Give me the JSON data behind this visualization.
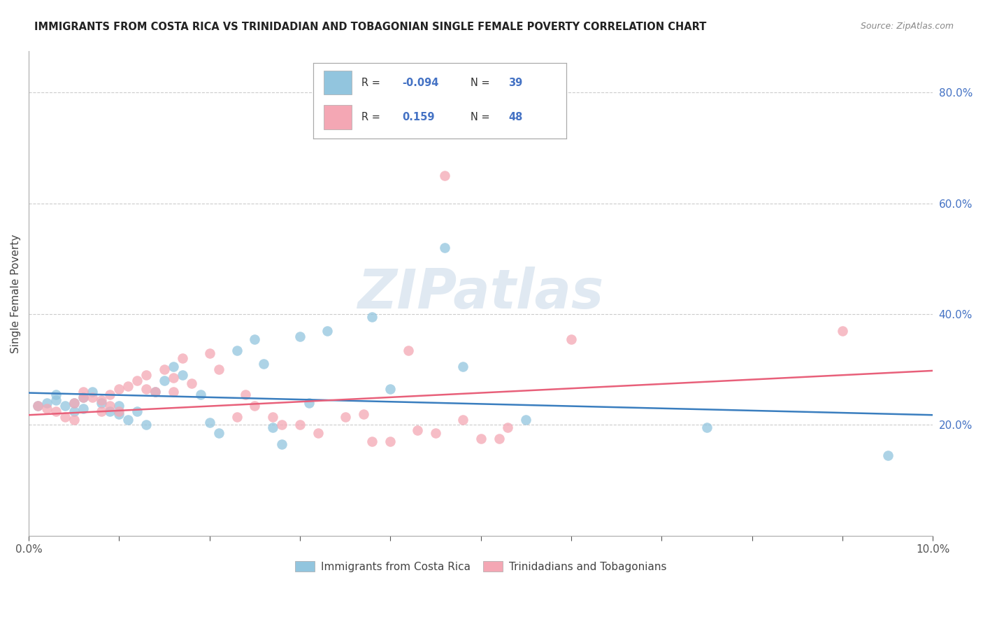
{
  "title": "IMMIGRANTS FROM COSTA RICA VS TRINIDADIAN AND TOBAGONIAN SINGLE FEMALE POVERTY CORRELATION CHART",
  "source": "Source: ZipAtlas.com",
  "ylabel": "Single Female Poverty",
  "legend_label1": "Immigrants from Costa Rica",
  "legend_label2": "Trinidadians and Tobagonians",
  "watermark": "ZIPatlas",
  "color_blue": "#92c5de",
  "color_pink": "#f4a7b4",
  "color_blue_line": "#3a7ebf",
  "color_pink_line": "#e8607a",
  "right_ytick_labels": [
    "20.0%",
    "40.0%",
    "60.0%",
    "80.0%"
  ],
  "right_ytick_values": [
    0.2,
    0.4,
    0.6,
    0.8
  ],
  "blue_scatter_x": [
    0.001,
    0.002,
    0.003,
    0.003,
    0.004,
    0.005,
    0.005,
    0.006,
    0.006,
    0.007,
    0.008,
    0.009,
    0.01,
    0.01,
    0.011,
    0.012,
    0.013,
    0.014,
    0.015,
    0.016,
    0.017,
    0.019,
    0.02,
    0.021,
    0.023,
    0.025,
    0.026,
    0.027,
    0.028,
    0.03,
    0.031,
    0.033,
    0.038,
    0.04,
    0.046,
    0.048,
    0.055,
    0.075,
    0.095
  ],
  "blue_scatter_y": [
    0.235,
    0.24,
    0.245,
    0.255,
    0.235,
    0.225,
    0.24,
    0.25,
    0.23,
    0.26,
    0.24,
    0.225,
    0.235,
    0.22,
    0.21,
    0.225,
    0.2,
    0.26,
    0.28,
    0.305,
    0.29,
    0.255,
    0.205,
    0.185,
    0.335,
    0.355,
    0.31,
    0.195,
    0.165,
    0.36,
    0.24,
    0.37,
    0.395,
    0.265,
    0.52,
    0.305,
    0.21,
    0.195,
    0.145
  ],
  "pink_scatter_x": [
    0.001,
    0.002,
    0.003,
    0.004,
    0.005,
    0.005,
    0.006,
    0.006,
    0.007,
    0.008,
    0.008,
    0.009,
    0.009,
    0.01,
    0.01,
    0.011,
    0.012,
    0.013,
    0.013,
    0.014,
    0.015,
    0.016,
    0.016,
    0.017,
    0.018,
    0.02,
    0.021,
    0.023,
    0.024,
    0.025,
    0.027,
    0.028,
    0.03,
    0.032,
    0.035,
    0.037,
    0.038,
    0.04,
    0.042,
    0.043,
    0.045,
    0.046,
    0.048,
    0.05,
    0.052,
    0.053,
    0.06,
    0.09
  ],
  "pink_scatter_y": [
    0.235,
    0.23,
    0.225,
    0.215,
    0.24,
    0.21,
    0.26,
    0.25,
    0.25,
    0.245,
    0.225,
    0.235,
    0.255,
    0.265,
    0.225,
    0.27,
    0.28,
    0.29,
    0.265,
    0.26,
    0.3,
    0.285,
    0.26,
    0.32,
    0.275,
    0.33,
    0.3,
    0.215,
    0.255,
    0.235,
    0.215,
    0.2,
    0.2,
    0.185,
    0.215,
    0.22,
    0.17,
    0.17,
    0.335,
    0.19,
    0.185,
    0.65,
    0.21,
    0.175,
    0.175,
    0.195,
    0.355,
    0.37
  ],
  "xlim": [
    0.0,
    0.1
  ],
  "ylim": [
    0.0,
    0.875
  ],
  "blue_trend_x": [
    0.0,
    0.1
  ],
  "blue_trend_y": [
    0.258,
    0.218
  ],
  "pink_trend_x": [
    0.0,
    0.1
  ],
  "pink_trend_y": [
    0.218,
    0.298
  ]
}
